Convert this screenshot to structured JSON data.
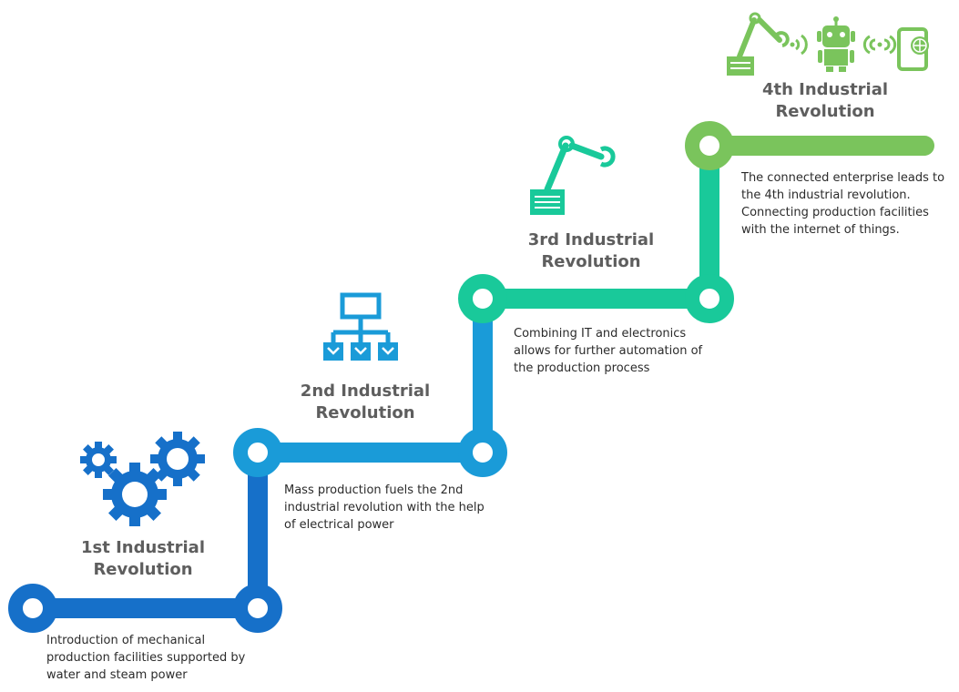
{
  "colors": {
    "stage1": "#1670c9",
    "stage2": "#1a9bd8",
    "stage3": "#19c99a",
    "stage4": "#7ac45c",
    "title_text": "#5e5e5e",
    "body_text": "#2b2b2b"
  },
  "stages": [
    {
      "icon": "gears-icon",
      "title": [
        "1st Industrial",
        "Revolution"
      ],
      "description": [
        "Introduction of mechanical",
        "production facilities supported by",
        "water and steam power"
      ]
    },
    {
      "icon": "network-hierarchy-icon",
      "title": [
        "2nd Industrial",
        "Revolution"
      ],
      "description": [
        "Mass production fuels the 2nd",
        "industrial revolution with the help",
        "of electrical power"
      ]
    },
    {
      "icon": "robotic-arm-icon",
      "title": [
        "3rd Industrial",
        "Revolution"
      ],
      "description": [
        "Combining  IT and electronics",
        "allows for further automation of",
        "the production process"
      ]
    },
    {
      "icon": "robot-iot-icon",
      "title": [
        "4th Industrial",
        "Revolution"
      ],
      "description": [
        "The connected enterprise leads to",
        "the 4th industrial revolution.",
        "Connecting production facilities",
        "with the internet of things."
      ]
    }
  ]
}
